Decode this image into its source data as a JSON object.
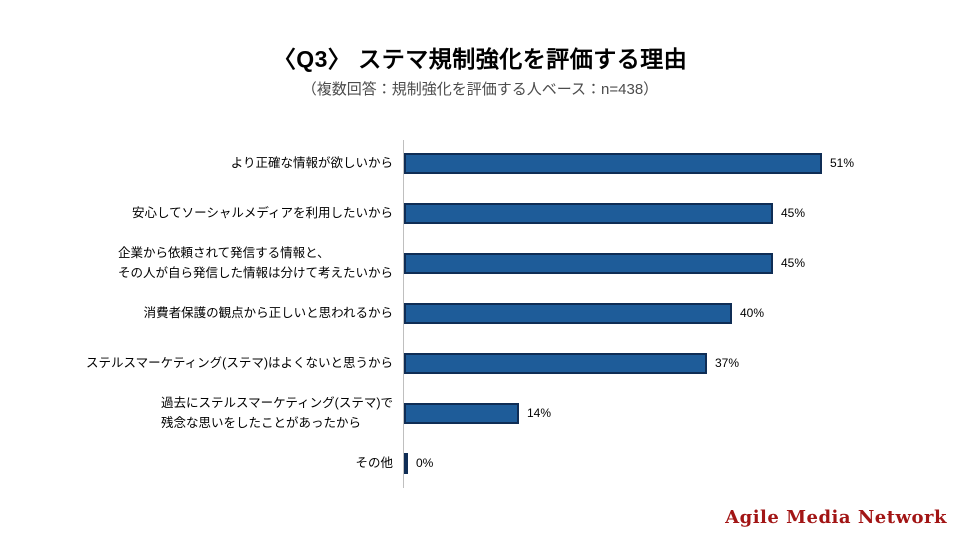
{
  "header": {
    "title": "〈Q3〉 ステマ規制強化を評価する理由",
    "subtitle": "（複数回答：規制強化を評価する人ベース：n=438）"
  },
  "footer": {
    "logo_text": "Agile Media Network"
  },
  "colors": {
    "bar_fill": "#1e5c99",
    "bar_border": "#0f2d55",
    "axis_line": "#bfbfbf",
    "logo_red": "#a21515",
    "subtitle_gray": "#4c4c4c"
  },
  "chart_data": {
    "type": "bar",
    "orientation": "horizontal",
    "title": "〈Q3〉 ステマ規制強化を評価する理由",
    "subtitle": "（複数回答：規制強化を評価する人ベース：n=438）",
    "sample_note": "n=438",
    "unit": "%",
    "xlim": [
      0,
      66
    ],
    "grid": false,
    "legend": false,
    "categories": [
      [
        "より正確な情報が欲しいから"
      ],
      [
        "安心してソーシャルメディアを利用したいから"
      ],
      [
        "企業から依頼されて発信する情報と、",
        "その人が自ら発信した情報は分けて考えたいから"
      ],
      [
        "消費者保護の観点から正しいと思われるから"
      ],
      [
        "ステルスマーケティング(ステマ)はよくないと思うから"
      ],
      [
        "過去にステルスマーケティング(ステマ)で",
        "残念な思いをしたことがあったから"
      ],
      [
        "その他"
      ]
    ],
    "values": [
      51,
      45,
      45,
      40,
      37,
      14,
      0
    ],
    "value_labels": [
      "51%",
      "45%",
      "45%",
      "40%",
      "37%",
      "14%",
      "0%"
    ]
  }
}
